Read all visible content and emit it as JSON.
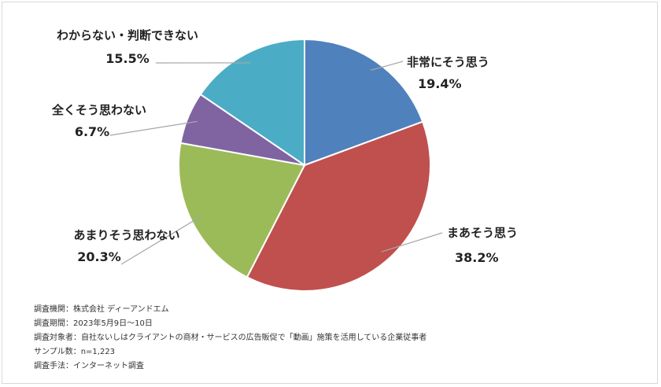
{
  "chart_data": {
    "type": "pie",
    "slices": [
      {
        "label": "非常にそう思う",
        "value": 19.4,
        "value_text": "19.4%",
        "color": "#4f81bd"
      },
      {
        "label": "まあそう思う",
        "value": 38.2,
        "value_text": "38.2%",
        "color": "#c0504d"
      },
      {
        "label": "あまりそう思わない",
        "value": 20.3,
        "value_text": "20.3%",
        "color": "#9bbb59"
      },
      {
        "label": "全くそう思わない",
        "value": 6.7,
        "value_text": "6.7%",
        "color": "#8064a2"
      },
      {
        "label": "わからない・判断できない",
        "value": 15.5,
        "value_text": "15.5%",
        "color": "#4bacc6"
      }
    ],
    "start_angle_deg": 0,
    "direction": "clockwise",
    "slice_border_color": "#ffffff"
  },
  "notes": [
    "調査機関：株式会社 ディーアンドエム",
    "調査期間：2023年5月9日～10日",
    "調査対象者：自社ないしはクライアントの商材・サービスの広告販促で「動画」施策を活用している企業従事者",
    "サンプル数：n=1,223",
    "調査手法：インターネット調査"
  ]
}
